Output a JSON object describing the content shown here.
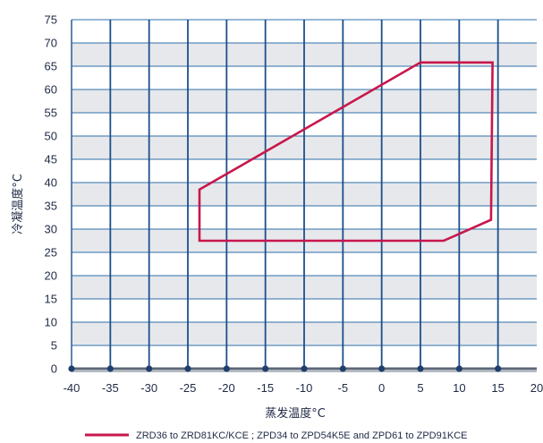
{
  "chart_data": {
    "type": "line",
    "title": "",
    "xlabel": "蒸发温度°C",
    "ylabel": "冷凝温度°C",
    "xlim": [
      -40,
      20
    ],
    "ylim": [
      0,
      75
    ],
    "xticks": [
      -40,
      -35,
      -30,
      -25,
      -20,
      -15,
      -10,
      -5,
      0,
      5,
      10,
      15,
      20
    ],
    "yticks": [
      0,
      5,
      10,
      15,
      20,
      25,
      30,
      35,
      40,
      45,
      50,
      55,
      60,
      65,
      70,
      75
    ],
    "grid": true,
    "legend_position": "bottom",
    "series": [
      {
        "name": "ZRD36 to ZRD81KC/KCE ; ZPD34 to ZPD54K5E and ZPD61 to ZPD91KCE",
        "color": "#c8174b",
        "closed": true,
        "x": [
          -23.5,
          5,
          14.3,
          14.1,
          8,
          -23.5,
          -23.5
        ],
        "y": [
          38.5,
          65.8,
          65.8,
          32,
          27.5,
          27.5,
          38.5
        ]
      }
    ]
  },
  "colors": {
    "band": "#e6e8ec",
    "grid_h": "#2f6fa8",
    "grid_v": "#1d4f8a",
    "axis": "#1f3f6e",
    "text": "#1f2a44"
  }
}
